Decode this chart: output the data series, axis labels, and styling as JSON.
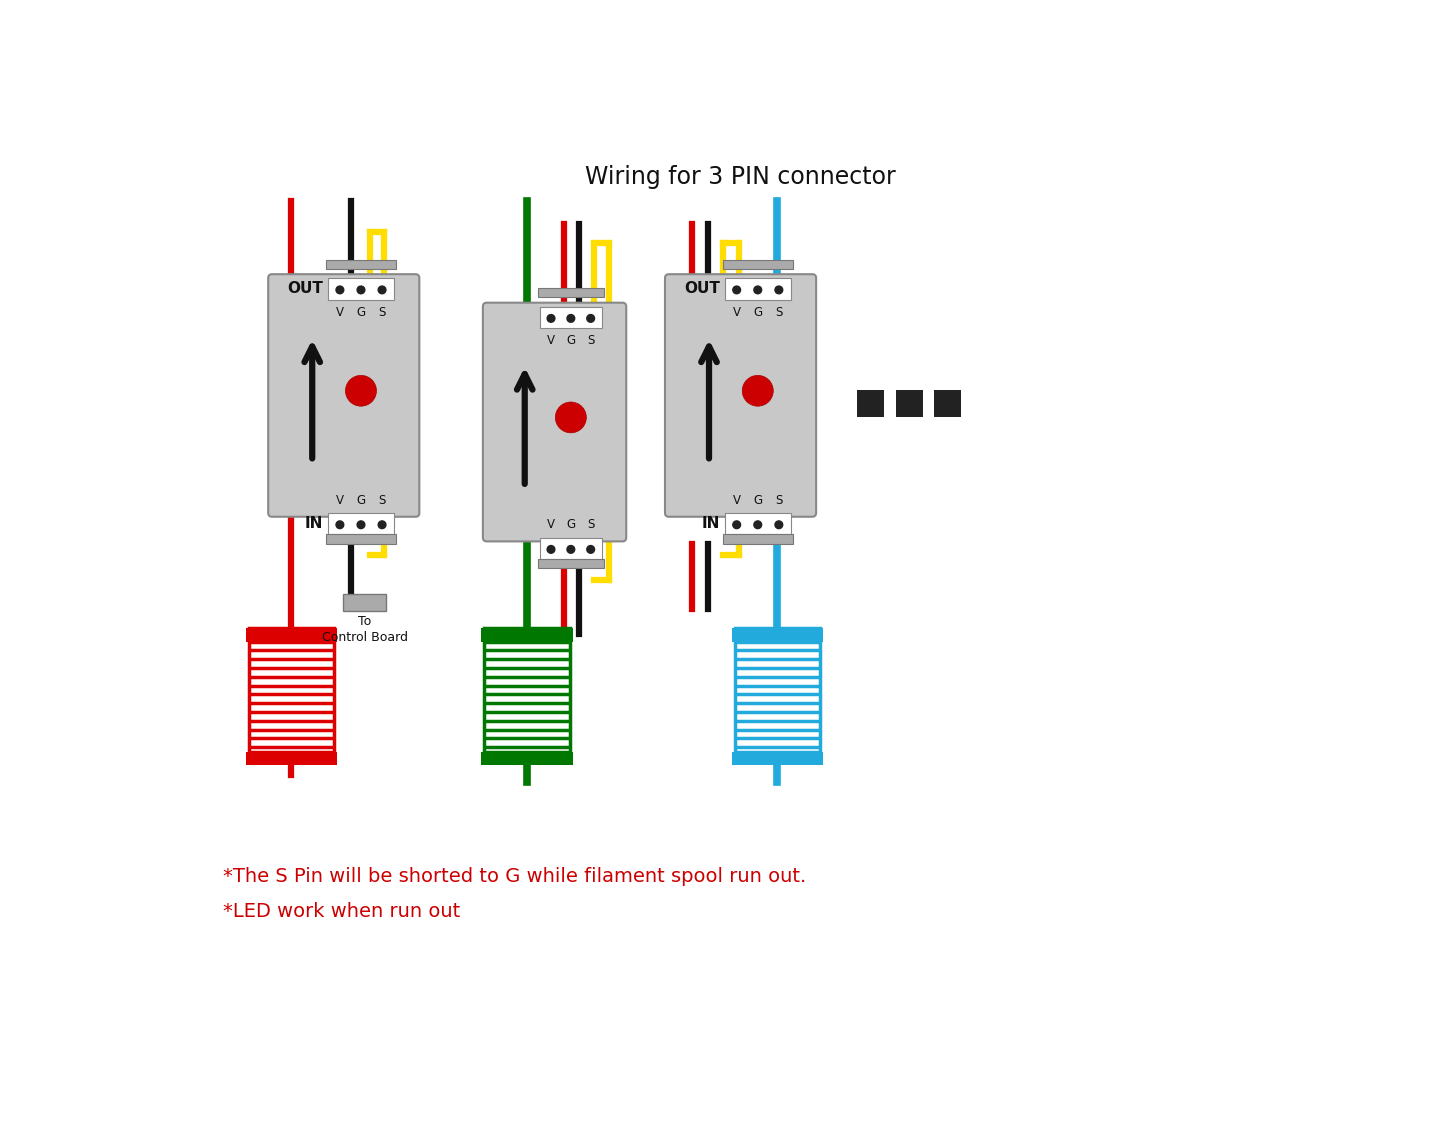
{
  "title": "Wiring for 3 PIN connector",
  "title_fontsize": 17,
  "bg_color": "#ffffff",
  "module_color": "#c8c8c8",
  "connector_color": "#aaaaaa",
  "connector_white": "#ffffff",
  "led_color": "#cc0000",
  "arrow_color": "#111111",
  "wire_red": "#dd0000",
  "wire_black": "#111111",
  "wire_yellow": "#ffdd00",
  "wire_green": "#007700",
  "wire_blue": "#22aadd",
  "text_red": "#cc0000",
  "text_black": "#111111",
  "note1": "*The S Pin will be shorted to G while filament spool run out.",
  "note2": "*LED work when run out",
  "lw_main": 4.5,
  "lw_spool_line": 2.5
}
